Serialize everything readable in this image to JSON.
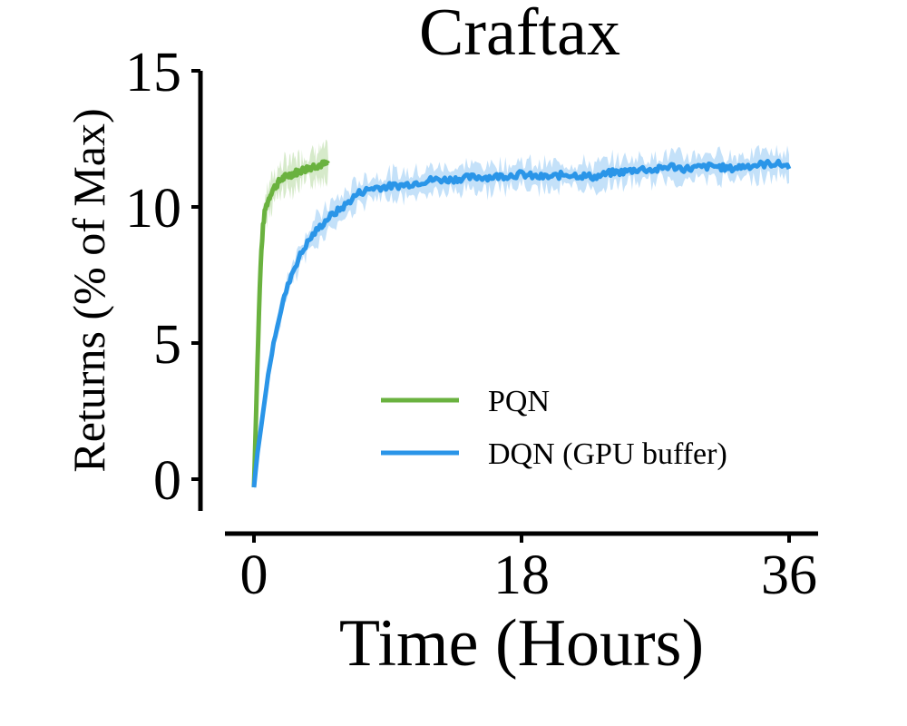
{
  "chart_data": {
    "type": "line",
    "title": "Craftax",
    "xlabel": "Time (Hours)",
    "ylabel": "Returns (% of Max)",
    "xlim": [
      -2,
      37.5
    ],
    "ylim": [
      -1.2,
      15
    ],
    "xticks": [
      0,
      18,
      36
    ],
    "yticks": [
      0,
      5,
      10,
      15
    ],
    "grid": false,
    "legend_position": "lower-right",
    "series": [
      {
        "name": "PQN",
        "color": "#6ab23f",
        "x": [
          0,
          0.1,
          0.2,
          0.3,
          0.4,
          0.5,
          0.6,
          0.7,
          0.8,
          1.0,
          1.2,
          1.5,
          1.8,
          2.1,
          2.5,
          3.0,
          3.5,
          4.0,
          4.5,
          5.0
        ],
        "y": [
          -0.3,
          1.5,
          3.5,
          5.5,
          7.2,
          8.4,
          9.2,
          9.7,
          10.0,
          10.3,
          10.6,
          10.8,
          11.0,
          11.1,
          11.2,
          11.3,
          11.4,
          11.5,
          11.55,
          11.6
        ]
      },
      {
        "name": "DQN (GPU buffer)",
        "color": "#2a95e8",
        "x": [
          0,
          0.2,
          0.5,
          0.8,
          1.0,
          1.5,
          2.0,
          2.5,
          3.0,
          3.5,
          4.0,
          5.0,
          6.0,
          7.0,
          8.0,
          9.0,
          10.0,
          11.0,
          12.0,
          13.0,
          14.0,
          15.0,
          16.0,
          17.0,
          18.0,
          19.0,
          20.0,
          21.0,
          22.0,
          23.0,
          24.0,
          25.0,
          26.0,
          27.0,
          28.0,
          29.0,
          30.0,
          31.0,
          32.0,
          33.0,
          34.0,
          35.0,
          36.0
        ],
        "y": [
          -0.3,
          0.8,
          2.0,
          3.2,
          4.0,
          5.5,
          6.6,
          7.5,
          8.1,
          8.6,
          9.0,
          9.6,
          10.0,
          10.5,
          10.7,
          10.75,
          10.8,
          10.9,
          11.0,
          11.0,
          11.05,
          11.1,
          11.1,
          11.15,
          11.2,
          11.1,
          11.1,
          11.2,
          11.15,
          11.1,
          11.25,
          11.3,
          11.4,
          11.35,
          11.5,
          11.4,
          11.45,
          11.5,
          11.4,
          11.5,
          11.55,
          11.6,
          11.5
        ]
      }
    ]
  }
}
